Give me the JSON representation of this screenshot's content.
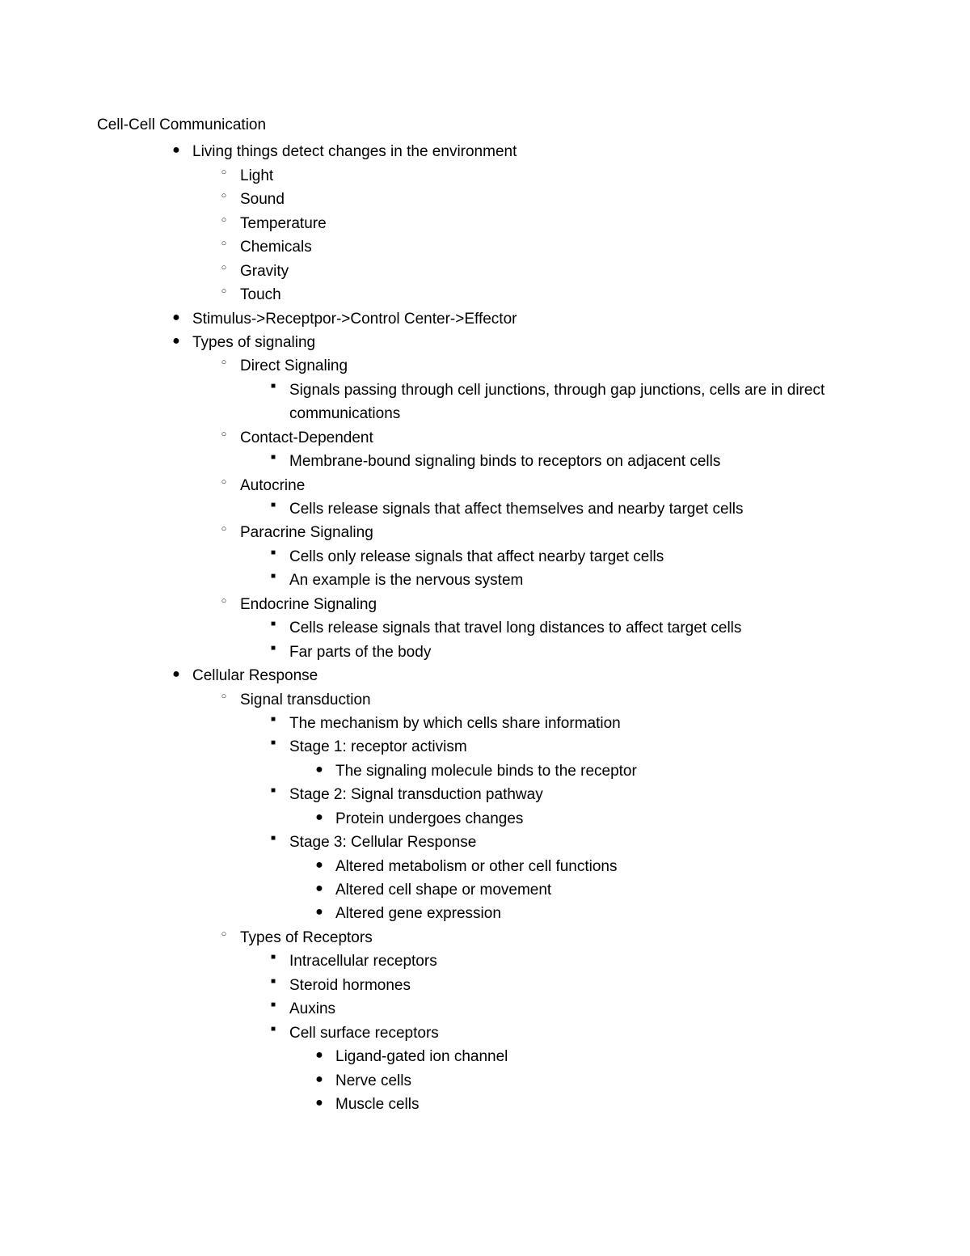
{
  "title": "Cell-Cell Communication",
  "font_family": "Arial",
  "font_size_pt": 14,
  "text_color": "#000000",
  "background_color": "#ffffff",
  "bullets": {
    "level1": "●",
    "level2": "○",
    "level3": "■",
    "level4": "●"
  },
  "outline": [
    {
      "text": "Living things detect changes in the environment",
      "children": [
        {
          "text": "Light"
        },
        {
          "text": "Sound"
        },
        {
          "text": "Temperature"
        },
        {
          "text": "Chemicals"
        },
        {
          "text": "Gravity"
        },
        {
          "text": "Touch"
        }
      ]
    },
    {
      "text": "Stimulus->Receptpor->Control Center->Effector"
    },
    {
      "text": "Types of signaling",
      "children": [
        {
          "text": "Direct Signaling",
          "children": [
            {
              "text": "Signals passing through cell junctions, through gap junctions, cells are in direct communications"
            }
          ]
        },
        {
          "text": "Contact-Dependent",
          "children": [
            {
              "text": "Membrane-bound signaling binds  to receptors on adjacent cells"
            }
          ]
        },
        {
          "text": "Autocrine",
          "children": [
            {
              "text": "Cells release signals that affect themselves and nearby target cells"
            }
          ]
        },
        {
          "text": "Paracrine Signaling",
          "children": [
            {
              "text": "Cells only release signals that affect nearby target cells"
            },
            {
              "text": "An example is the nervous system"
            }
          ]
        },
        {
          "text": "Endocrine Signaling",
          "children": [
            {
              "text": "Cells release signals that travel long distances to affect target cells"
            },
            {
              "text": "Far parts of the body"
            }
          ]
        }
      ]
    },
    {
      "text": "Cellular Response",
      "children": [
        {
          "text": "Signal transduction",
          "children": [
            {
              "text": "The mechanism by which cells share information"
            },
            {
              "text": "Stage 1: receptor activism",
              "children": [
                {
                  "text": "The signaling molecule binds to the receptor"
                }
              ]
            },
            {
              "text": "Stage 2: Signal transduction pathway",
              "children": [
                {
                  "text": "Protein undergoes changes"
                }
              ]
            },
            {
              "text": "Stage 3: Cellular Response",
              "children": [
                {
                  "text": "Altered metabolism or other cell functions"
                },
                {
                  "text": "Altered cell shape or movement"
                },
                {
                  "text": "Altered gene expression"
                }
              ]
            }
          ]
        },
        {
          "text": "Types of Receptors",
          "children": [
            {
              "text": "Intracellular receptors"
            },
            {
              "text": "Steroid hormones"
            },
            {
              "text": "Auxins"
            },
            {
              "text": "Cell surface receptors",
              "children": [
                {
                  "text": "Ligand-gated ion channel"
                },
                {
                  "text": "Nerve cells"
                },
                {
                  "text": "Muscle cells"
                }
              ]
            }
          ]
        }
      ]
    }
  ]
}
